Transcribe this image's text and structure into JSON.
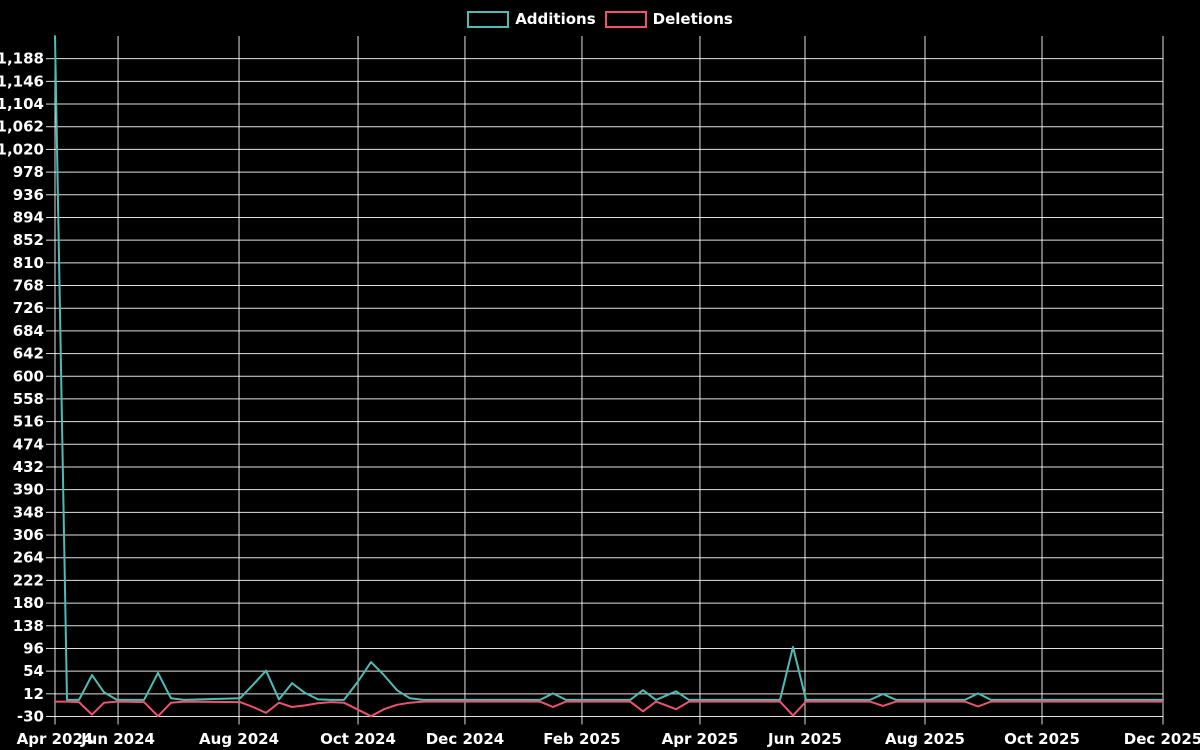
{
  "legend": {
    "items": [
      {
        "label": "Additions",
        "color": "#4dbcb6"
      },
      {
        "label": "Deletions",
        "color": "#f1516f"
      }
    ]
  },
  "colors": {
    "background": "#000000",
    "grid": "#ffffff",
    "text": "#ffffff",
    "additions": "#4dbcb6",
    "deletions": "#f1516f"
  },
  "chart_data": {
    "type": "line",
    "title": "",
    "grid": true,
    "legend_position": "top-center",
    "series": [
      {
        "name": "Additions",
        "color": "#4dbcb6",
        "key": "a"
      },
      {
        "name": "Deletions",
        "color": "#f1516f",
        "key": "d"
      }
    ],
    "y_axis": {
      "min": -30,
      "max": 1230,
      "tick_top": 1188,
      "tick_step": 42,
      "tick_labels": [
        "1,188",
        "1,146",
        "1,104",
        "1,062",
        "1,020",
        "978",
        "936",
        "894",
        "852",
        "810",
        "768",
        "726",
        "684",
        "642",
        "600",
        "558",
        "516",
        "474",
        "432",
        "390",
        "348",
        "306",
        "264",
        "222",
        "180",
        "138",
        "96",
        "54",
        "12",
        "-30"
      ]
    },
    "x_axis": {
      "ticks": [
        {
          "label": "Apr 2024",
          "pos": 0.0
        },
        {
          "label": "Jun 2024",
          "pos": 0.0569
        },
        {
          "label": "Aug 2024",
          "pos": 0.1661
        },
        {
          "label": "Oct 2024",
          "pos": 0.2735
        },
        {
          "label": "Dec 2024",
          "pos": 0.37
        },
        {
          "label": "Feb 2025",
          "pos": 0.4756
        },
        {
          "label": "Apr 2025",
          "pos": 0.5821
        },
        {
          "label": "Jun 2025",
          "pos": 0.6769
        },
        {
          "label": "Aug 2025",
          "pos": 0.7852
        },
        {
          "label": "Oct 2025",
          "pos": 0.8908
        },
        {
          "label": "Dec 2025",
          "pos": 1.0
        }
      ]
    },
    "points": [
      {
        "f": 0.0,
        "a": 1229,
        "d": 0
      },
      {
        "f": 0.0108,
        "a": 0,
        "d": 0
      },
      {
        "f": 0.0217,
        "a": 0,
        "d": -1
      },
      {
        "f": 0.0334,
        "a": 46,
        "d": -24
      },
      {
        "f": 0.0442,
        "a": 14,
        "d": -2
      },
      {
        "f": 0.056,
        "a": 0,
        "d": 0
      },
      {
        "f": 0.0803,
        "a": 0,
        "d": -1
      },
      {
        "f": 0.093,
        "a": 50,
        "d": -27
      },
      {
        "f": 0.1047,
        "a": 3,
        "d": -2
      },
      {
        "f": 0.1164,
        "a": 0,
        "d": 0
      },
      {
        "f": 0.167,
        "a": 3,
        "d": -1
      },
      {
        "f": 0.1787,
        "a": 28,
        "d": -10
      },
      {
        "f": 0.1904,
        "a": 54,
        "d": -21
      },
      {
        "f": 0.2022,
        "a": 1,
        "d": -2
      },
      {
        "f": 0.2139,
        "a": 31,
        "d": -10
      },
      {
        "f": 0.2256,
        "a": 13,
        "d": -7
      },
      {
        "f": 0.2374,
        "a": 1,
        "d": -3
      },
      {
        "f": 0.2491,
        "a": 0,
        "d": -1
      },
      {
        "f": 0.2608,
        "a": 0,
        "d": -2
      },
      {
        "f": 0.2735,
        "a": 34,
        "d": -15
      },
      {
        "f": 0.2852,
        "a": 70,
        "d": -27
      },
      {
        "f": 0.2969,
        "a": 46,
        "d": -14
      },
      {
        "f": 0.3087,
        "a": 18,
        "d": -6
      },
      {
        "f": 0.3204,
        "a": 3,
        "d": -2
      },
      {
        "f": 0.3321,
        "a": 0,
        "d": 0
      },
      {
        "f": 0.4377,
        "a": 0,
        "d": 0
      },
      {
        "f": 0.4495,
        "a": 12,
        "d": -10
      },
      {
        "f": 0.4612,
        "a": 0,
        "d": 0
      },
      {
        "f": 0.519,
        "a": 0,
        "d": 0
      },
      {
        "f": 0.5307,
        "a": 18,
        "d": -18
      },
      {
        "f": 0.5424,
        "a": 0,
        "d": 0
      },
      {
        "f": 0.5605,
        "a": 16,
        "d": -14
      },
      {
        "f": 0.5722,
        "a": 0,
        "d": 0
      },
      {
        "f": 0.6543,
        "a": 0,
        "d": 0
      },
      {
        "f": 0.6661,
        "a": 98,
        "d": -26
      },
      {
        "f": 0.6778,
        "a": 0,
        "d": 0
      },
      {
        "f": 0.7356,
        "a": 0,
        "d": 0
      },
      {
        "f": 0.7473,
        "a": 11,
        "d": -8
      },
      {
        "f": 0.759,
        "a": 0,
        "d": 0
      },
      {
        "f": 0.8213,
        "a": 0,
        "d": 0
      },
      {
        "f": 0.833,
        "a": 12,
        "d": -9
      },
      {
        "f": 0.8448,
        "a": 0,
        "d": 0
      },
      {
        "f": 1.0,
        "a": 0,
        "d": 0
      }
    ]
  }
}
